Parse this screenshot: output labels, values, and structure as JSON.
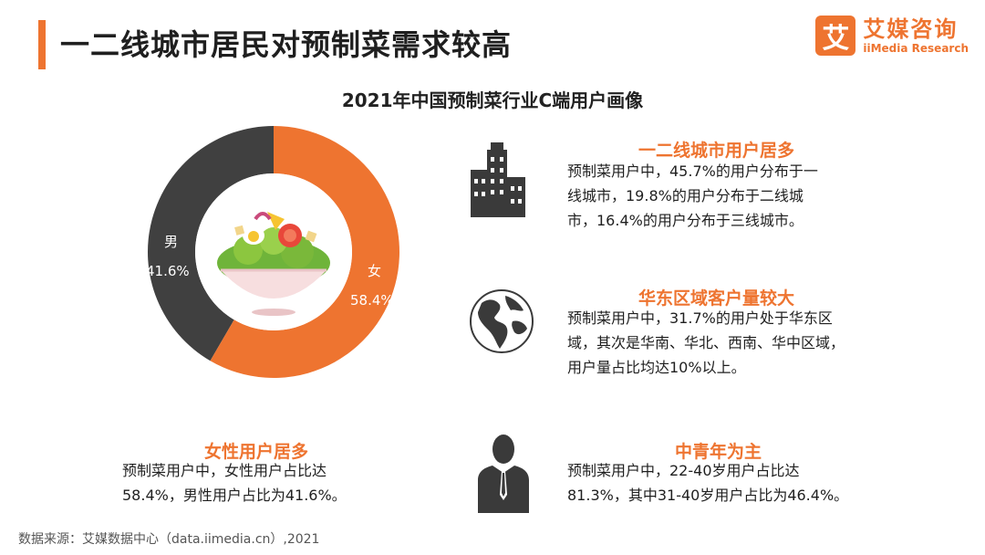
{
  "header": {
    "title": "一二线城市居民对预制菜需求较高",
    "subtitle": "2021年中国预制菜行业C端用户画像"
  },
  "logo": {
    "mark": "艾",
    "name_cn": "艾媒咨询",
    "name_en": "iiMedia Research",
    "color": "#ee7430"
  },
  "chart_data": {
    "type": "pie",
    "title": "2021年中国预制菜行业C端用户画像",
    "categories": [
      "男",
      "女"
    ],
    "values": [
      41.6,
      58.4
    ],
    "labels": [
      "41.6%",
      "58.4%"
    ],
    "colors": [
      "#404040",
      "#ee7430"
    ],
    "style": "donut",
    "center_image": "salad-bowl"
  },
  "sections": {
    "city": {
      "icon": "city-buildings-icon",
      "title": "一二线城市用户居多",
      "lines": [
        "预制菜用户中，45.7%的用户分布于一",
        "线城市，19.8%的用户分布于二线城",
        "市，16.4%的用户分布于三线城市。"
      ]
    },
    "region": {
      "icon": "globe-icon",
      "title": "华东区域客户量较大",
      "lines": [
        "预制菜用户中，31.7%的用户处于华东区",
        "域，其次是华南、华北、西南、华中区域，",
        "用户量占比均达10%以上。"
      ]
    },
    "gender": {
      "title": "女性用户居多",
      "lines": [
        "预制菜用户中，女性用户占比达",
        "58.4%，男性用户占比为41.6%。"
      ]
    },
    "age": {
      "icon": "businessman-icon",
      "title": "中青年为主",
      "lines": [
        "预制菜用户中，22-40岁用户占比达",
        "81.3%，其中31-40岁用户占比为46.4%。"
      ]
    }
  },
  "footer": {
    "source": "数据来源：艾媒数据中心（data.iimedia.cn）,2021"
  }
}
